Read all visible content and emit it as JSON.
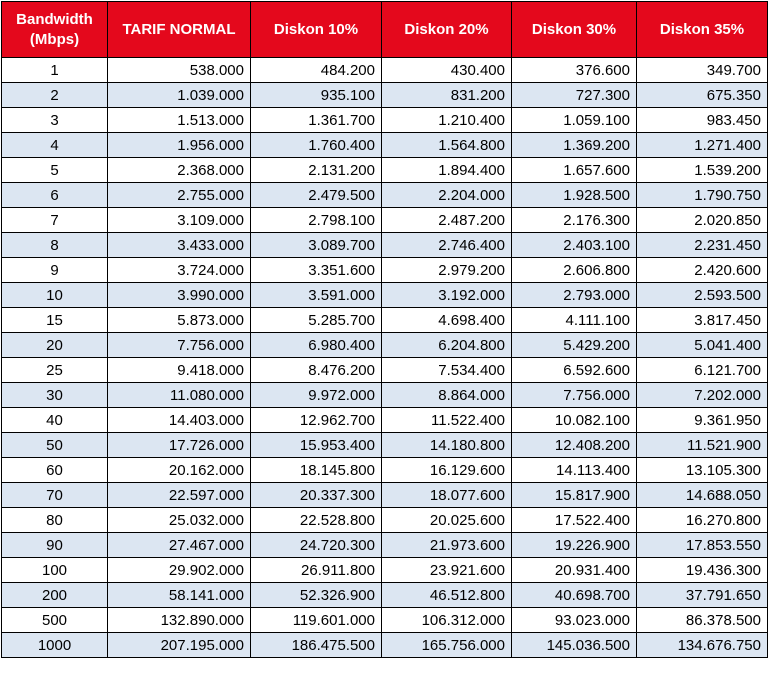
{
  "table": {
    "header": {
      "bandwidth_line1": "Bandwidth",
      "bandwidth_line2": "(Mbps)",
      "tarif_normal": "TARIF NORMAL",
      "diskon_10": "Diskon 10%",
      "diskon_20": "Diskon 20%",
      "diskon_30": "Diskon 30%",
      "diskon_35": "Diskon 35%"
    },
    "header_color": "#e4081c",
    "stripe_color": "#dce6f2",
    "rows": [
      [
        "1",
        "538.000",
        "484.200",
        "430.400",
        "376.600",
        "349.700"
      ],
      [
        "2",
        "1.039.000",
        "935.100",
        "831.200",
        "727.300",
        "675.350"
      ],
      [
        "3",
        "1.513.000",
        "1.361.700",
        "1.210.400",
        "1.059.100",
        "983.450"
      ],
      [
        "4",
        "1.956.000",
        "1.760.400",
        "1.564.800",
        "1.369.200",
        "1.271.400"
      ],
      [
        "5",
        "2.368.000",
        "2.131.200",
        "1.894.400",
        "1.657.600",
        "1.539.200"
      ],
      [
        "6",
        "2.755.000",
        "2.479.500",
        "2.204.000",
        "1.928.500",
        "1.790.750"
      ],
      [
        "7",
        "3.109.000",
        "2.798.100",
        "2.487.200",
        "2.176.300",
        "2.020.850"
      ],
      [
        "8",
        "3.433.000",
        "3.089.700",
        "2.746.400",
        "2.403.100",
        "2.231.450"
      ],
      [
        "9",
        "3.724.000",
        "3.351.600",
        "2.979.200",
        "2.606.800",
        "2.420.600"
      ],
      [
        "10",
        "3.990.000",
        "3.591.000",
        "3.192.000",
        "2.793.000",
        "2.593.500"
      ],
      [
        "15",
        "5.873.000",
        "5.285.700",
        "4.698.400",
        "4.111.100",
        "3.817.450"
      ],
      [
        "20",
        "7.756.000",
        "6.980.400",
        "6.204.800",
        "5.429.200",
        "5.041.400"
      ],
      [
        "25",
        "9.418.000",
        "8.476.200",
        "7.534.400",
        "6.592.600",
        "6.121.700"
      ],
      [
        "30",
        "11.080.000",
        "9.972.000",
        "8.864.000",
        "7.756.000",
        "7.202.000"
      ],
      [
        "40",
        "14.403.000",
        "12.962.700",
        "11.522.400",
        "10.082.100",
        "9.361.950"
      ],
      [
        "50",
        "17.726.000",
        "15.953.400",
        "14.180.800",
        "12.408.200",
        "11.521.900"
      ],
      [
        "60",
        "20.162.000",
        "18.145.800",
        "16.129.600",
        "14.113.400",
        "13.105.300"
      ],
      [
        "70",
        "22.597.000",
        "20.337.300",
        "18.077.600",
        "15.817.900",
        "14.688.050"
      ],
      [
        "80",
        "25.032.000",
        "22.528.800",
        "20.025.600",
        "17.522.400",
        "16.270.800"
      ],
      [
        "90",
        "27.467.000",
        "24.720.300",
        "21.973.600",
        "19.226.900",
        "17.853.550"
      ],
      [
        "100",
        "29.902.000",
        "26.911.800",
        "23.921.600",
        "20.931.400",
        "19.436.300"
      ],
      [
        "200",
        "58.141.000",
        "52.326.900",
        "46.512.800",
        "40.698.700",
        "37.791.650"
      ],
      [
        "500",
        "132.890.000",
        "119.601.000",
        "106.312.000",
        "93.023.000",
        "86.378.500"
      ],
      [
        "1000",
        "207.195.000",
        "186.475.500",
        "165.756.000",
        "145.036.500",
        "134.676.750"
      ]
    ]
  }
}
